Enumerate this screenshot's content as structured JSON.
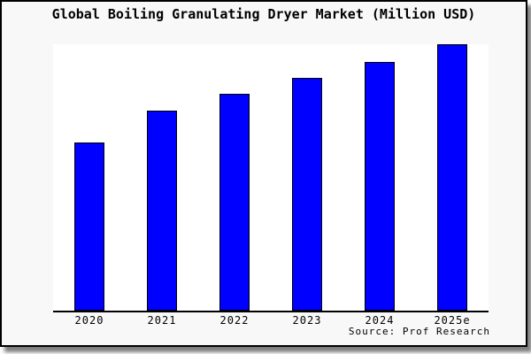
{
  "source": "Source: Prof Research",
  "colors": {
    "bar": "#0000FF",
    "bar_border": "#000000",
    "canvas_bg": "#F8F8F8",
    "plot_bg": "#FFFFFF",
    "axis": "#000000",
    "image_border": "#000000"
  },
  "chart_data": {
    "type": "bar",
    "title": "Global Boiling Granulating Dryer Market (Million USD)",
    "categories": [
      "2020",
      "2021",
      "2022",
      "2023",
      "2024",
      "2025e"
    ],
    "values": [
      63,
      75,
      81.5,
      87.5,
      93.5,
      100
    ],
    "value_note": "No y-axis or data labels shown; values are estimated relative bar heights with tallest bar (2025e) = 100",
    "xlabel": "",
    "ylabel": "",
    "ylim": [
      0,
      100
    ],
    "grid": false,
    "legend": false,
    "y_axis_visible": false,
    "x_axis_visible": true
  }
}
